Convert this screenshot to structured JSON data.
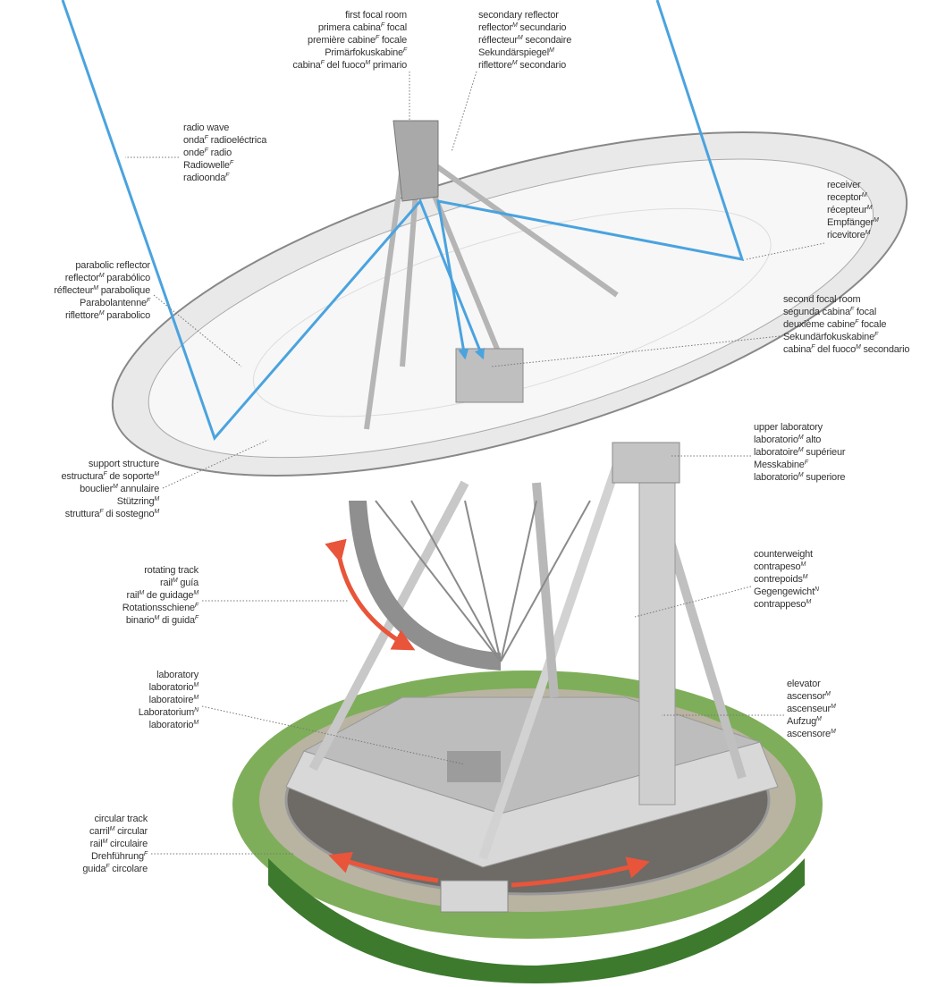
{
  "labels": [
    {
      "lines": [
        [
          {
            "text": "first focal room"
          }
        ],
        [
          {
            "text": "primera cabina"
          },
          {
            "sup": "F"
          },
          {
            "text": " focal"
          }
        ],
        [
          {
            "text": "première cabine"
          },
          {
            "sup": "F"
          },
          {
            "text": " focale"
          }
        ],
        [
          {
            "text": "Primärfokuskabine"
          },
          {
            "sup": "F"
          }
        ],
        [
          {
            "text": "cabina"
          },
          {
            "sup": "F"
          },
          {
            "text": " del fuoco"
          },
          {
            "sup": "M"
          },
          {
            "text": " primario"
          }
        ]
      ]
    },
    {
      "lines": [
        [
          {
            "text": "secondary reflector"
          }
        ],
        [
          {
            "text": "reflector"
          },
          {
            "sup": "M"
          },
          {
            "text": " secundario"
          }
        ],
        [
          {
            "text": "réflecteur"
          },
          {
            "sup": "M"
          },
          {
            "text": " secondaire"
          }
        ],
        [
          {
            "text": "Sekundärspiegel"
          },
          {
            "sup": "M"
          }
        ],
        [
          {
            "text": "riflettore"
          },
          {
            "sup": "M"
          },
          {
            "text": " secondario"
          }
        ]
      ]
    },
    {
      "lines": [
        [
          {
            "text": "radio wave"
          }
        ],
        [
          {
            "text": "onda"
          },
          {
            "sup": "F"
          },
          {
            "text": " radioeléctrica"
          }
        ],
        [
          {
            "text": "onde"
          },
          {
            "sup": "F"
          },
          {
            "text": " radio"
          }
        ],
        [
          {
            "text": "Radiowelle"
          },
          {
            "sup": "F"
          }
        ],
        [
          {
            "text": "radioonda"
          },
          {
            "sup": "F"
          }
        ]
      ]
    },
    {
      "lines": [
        [
          {
            "text": "receiver"
          }
        ],
        [
          {
            "text": "receptor"
          },
          {
            "sup": "M"
          }
        ],
        [
          {
            "text": "récepteur"
          },
          {
            "sup": "M"
          }
        ],
        [
          {
            "text": "Empfänger"
          },
          {
            "sup": "M"
          }
        ],
        [
          {
            "text": "ricevitore"
          },
          {
            "sup": "M"
          }
        ]
      ]
    },
    {
      "lines": [
        [
          {
            "text": "parabolic reflector"
          }
        ],
        [
          {
            "text": "reflector"
          },
          {
            "sup": "M"
          },
          {
            "text": " parabólico"
          }
        ],
        [
          {
            "text": "réflecteur"
          },
          {
            "sup": "M"
          },
          {
            "text": " parabolique"
          }
        ],
        [
          {
            "text": "Parabolantenne"
          },
          {
            "sup": "F"
          }
        ],
        [
          {
            "text": "riflettore"
          },
          {
            "sup": "M"
          },
          {
            "text": " parabolico"
          }
        ]
      ]
    },
    {
      "lines": [
        [
          {
            "text": "second focal room"
          }
        ],
        [
          {
            "text": "segunda cabina"
          },
          {
            "sup": "F"
          },
          {
            "text": " focal"
          }
        ],
        [
          {
            "text": "deuxième cabine"
          },
          {
            "sup": "F"
          },
          {
            "text": " focale"
          }
        ],
        [
          {
            "text": "Sekundärfokuskabine"
          },
          {
            "sup": "F"
          }
        ],
        [
          {
            "text": "cabina"
          },
          {
            "sup": "F"
          },
          {
            "text": " del fuoco"
          },
          {
            "sup": "M"
          },
          {
            "text": " secondario"
          }
        ]
      ]
    },
    {
      "lines": [
        [
          {
            "text": "support structure"
          }
        ],
        [
          {
            "text": "estructura"
          },
          {
            "sup": "F"
          },
          {
            "text": " de soporte"
          },
          {
            "sup": "M"
          }
        ],
        [
          {
            "text": "bouclier"
          },
          {
            "sup": "M"
          },
          {
            "text": " annulaire"
          }
        ],
        [
          {
            "text": "Stützring"
          },
          {
            "sup": "M"
          }
        ],
        [
          {
            "text": "struttura"
          },
          {
            "sup": "F"
          },
          {
            "text": " di sostegno"
          },
          {
            "sup": "M"
          }
        ]
      ]
    },
    {
      "lines": [
        [
          {
            "text": "upper laboratory"
          }
        ],
        [
          {
            "text": "laboratorio"
          },
          {
            "sup": "M"
          },
          {
            "text": " alto"
          }
        ],
        [
          {
            "text": "laboratoire"
          },
          {
            "sup": "M"
          },
          {
            "text": " supérieur"
          }
        ],
        [
          {
            "text": "Messkabine"
          },
          {
            "sup": "F"
          }
        ],
        [
          {
            "text": "laboratorio"
          },
          {
            "sup": "M"
          },
          {
            "text": " superiore"
          }
        ]
      ]
    },
    {
      "lines": [
        [
          {
            "text": "rotating track"
          }
        ],
        [
          {
            "text": "rail"
          },
          {
            "sup": "M"
          },
          {
            "text": " guía"
          }
        ],
        [
          {
            "text": "rail"
          },
          {
            "sup": "M"
          },
          {
            "text": " de guidage"
          },
          {
            "sup": "M"
          }
        ],
        [
          {
            "text": "Rotationsschiene"
          },
          {
            "sup": "F"
          }
        ],
        [
          {
            "text": "binario"
          },
          {
            "sup": "M"
          },
          {
            "text": " di guida"
          },
          {
            "sup": "F"
          }
        ]
      ]
    },
    {
      "lines": [
        [
          {
            "text": "counterweight"
          }
        ],
        [
          {
            "text": "contrapeso"
          },
          {
            "sup": "M"
          }
        ],
        [
          {
            "text": "contrepoids"
          },
          {
            "sup": "M"
          }
        ],
        [
          {
            "text": "Gegengewicht"
          },
          {
            "sup": "N"
          }
        ],
        [
          {
            "text": "contrappeso"
          },
          {
            "sup": "M"
          }
        ]
      ]
    },
    {
      "lines": [
        [
          {
            "text": "laboratory"
          }
        ],
        [
          {
            "text": "laboratorio"
          },
          {
            "sup": "M"
          }
        ],
        [
          {
            "text": "laboratoire"
          },
          {
            "sup": "M"
          }
        ],
        [
          {
            "text": "Laboratorium"
          },
          {
            "sup": "N"
          }
        ],
        [
          {
            "text": "laboratorio"
          },
          {
            "sup": "M"
          }
        ]
      ]
    },
    {
      "lines": [
        [
          {
            "text": "elevator"
          }
        ],
        [
          {
            "text": "ascensor"
          },
          {
            "sup": "M"
          }
        ],
        [
          {
            "text": "ascenseur"
          },
          {
            "sup": "M"
          }
        ],
        [
          {
            "text": "Aufzug"
          },
          {
            "sup": "M"
          }
        ],
        [
          {
            "text": "ascensore"
          },
          {
            "sup": "M"
          }
        ]
      ]
    },
    {
      "lines": [
        [
          {
            "text": "circular track"
          }
        ],
        [
          {
            "text": "carril"
          },
          {
            "sup": "M"
          },
          {
            "text": " circular"
          }
        ],
        [
          {
            "text": "rail"
          },
          {
            "sup": "M"
          },
          {
            "text": " circulaire"
          }
        ],
        [
          {
            "text": "Drehführung"
          },
          {
            "sup": "F"
          }
        ],
        [
          {
            "text": "guida"
          },
          {
            "sup": "F"
          },
          {
            "text": " circolare"
          }
        ]
      ]
    }
  ]
}
